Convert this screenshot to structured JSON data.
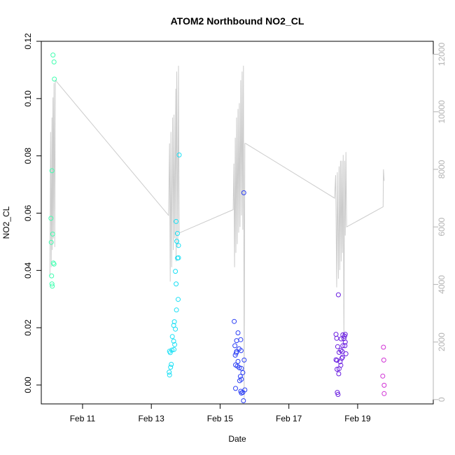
{
  "chart_data": {
    "type": "scatter",
    "title": "ATOM2 Northbound NO2_CL",
    "xlabel": "Date",
    "ylabel": "NO2_CL",
    "x_unit": "days",
    "xlim": [
      9.8,
      21.2
    ],
    "ylim": [
      -0.0066,
      0.12
    ],
    "y2lim": [
      -150,
      12450
    ],
    "grid": false,
    "legend": "none",
    "x_ticks": [
      {
        "value": 11,
        "label": "Feb 11"
      },
      {
        "value": 13,
        "label": "Feb 13"
      },
      {
        "value": 15,
        "label": "Feb 15"
      },
      {
        "value": 17,
        "label": "Feb 17"
      },
      {
        "value": 19,
        "label": "Feb 19"
      }
    ],
    "y_ticks": [
      "0.00",
      "0.02",
      "0.04",
      "0.06",
      "0.08",
      "0.10",
      "0.12"
    ],
    "y2_ticks": [
      "0",
      "2000",
      "4000",
      "6000",
      "8000",
      "10000",
      "12000"
    ],
    "series": [
      {
        "color": "#40ffb0",
        "points": [
          [
            10.14,
            0.1152
          ],
          [
            10.17,
            0.1128
          ],
          [
            10.18,
            0.1068
          ],
          [
            10.11,
            0.0748
          ],
          [
            10.08,
            0.0582
          ],
          [
            10.09,
            0.0498
          ],
          [
            10.13,
            0.0527
          ],
          [
            10.15,
            0.0426
          ],
          [
            10.17,
            0.0422
          ],
          [
            10.1,
            0.0381
          ],
          [
            10.11,
            0.0353
          ],
          [
            10.12,
            0.0345
          ]
        ]
      },
      {
        "color": "#19e0f5",
        "points": [
          [
            13.81,
            0.0803
          ],
          [
            13.72,
            0.0571
          ],
          [
            13.76,
            0.0529
          ],
          [
            13.74,
            0.0502
          ],
          [
            13.79,
            0.0487
          ],
          [
            13.76,
            0.0443
          ],
          [
            13.79,
            0.0444
          ],
          [
            13.7,
            0.0397
          ],
          [
            13.72,
            0.0353
          ],
          [
            13.78,
            0.0299
          ],
          [
            13.73,
            0.0262
          ],
          [
            13.67,
            0.0221
          ],
          [
            13.65,
            0.0208
          ],
          [
            13.7,
            0.0195
          ],
          [
            13.61,
            0.0169
          ],
          [
            13.65,
            0.0153
          ],
          [
            13.68,
            0.0141
          ],
          [
            13.6,
            0.0122
          ],
          [
            13.66,
            0.0124
          ],
          [
            13.53,
            0.0118
          ],
          [
            13.55,
            0.0113
          ],
          [
            13.58,
            0.0072
          ],
          [
            13.56,
            0.0062
          ],
          [
            13.52,
            0.0045
          ],
          [
            13.53,
            0.0035
          ]
        ]
      },
      {
        "color": "#2a3ef5",
        "points": [
          [
            15.69,
            0.0671
          ],
          [
            15.41,
            0.0222
          ],
          [
            15.52,
            0.0182
          ],
          [
            15.6,
            0.0158
          ],
          [
            15.48,
            0.0155
          ],
          [
            15.43,
            0.0137
          ],
          [
            15.55,
            0.0126
          ],
          [
            15.61,
            0.012
          ],
          [
            15.48,
            0.0117
          ],
          [
            15.44,
            0.0104
          ],
          [
            15.47,
            0.0112
          ],
          [
            15.7,
            0.0087
          ],
          [
            15.52,
            0.0082
          ],
          [
            15.45,
            0.007
          ],
          [
            15.5,
            0.0066
          ],
          [
            15.56,
            0.006
          ],
          [
            15.62,
            0.0058
          ],
          [
            15.66,
            0.0043
          ],
          [
            15.59,
            0.003
          ],
          [
            15.62,
            0.002
          ],
          [
            15.57,
            0.0015
          ],
          [
            15.45,
            -0.0012
          ],
          [
            15.72,
            -0.0017
          ],
          [
            15.6,
            -0.0022
          ],
          [
            15.66,
            -0.0026
          ],
          [
            15.62,
            -0.0028
          ],
          [
            15.68,
            -0.0055
          ]
        ]
      },
      {
        "color": "#6a1ee0",
        "points": [
          [
            18.44,
            0.0315
          ],
          [
            18.37,
            0.0177
          ],
          [
            18.57,
            0.0175
          ],
          [
            18.64,
            0.0177
          ],
          [
            18.62,
            0.017
          ],
          [
            18.52,
            0.0161
          ],
          [
            18.6,
            0.0162
          ],
          [
            18.39,
            0.0163
          ],
          [
            18.64,
            0.015
          ],
          [
            18.57,
            0.0137
          ],
          [
            18.63,
            0.0137
          ],
          [
            18.42,
            0.0134
          ],
          [
            18.51,
            0.0121
          ],
          [
            18.55,
            0.0117
          ],
          [
            18.46,
            0.0114
          ],
          [
            18.66,
            0.0109
          ],
          [
            18.56,
            0.0097
          ],
          [
            18.54,
            0.0093
          ],
          [
            18.4,
            0.0086
          ],
          [
            18.37,
            0.0088
          ],
          [
            18.49,
            0.0081
          ],
          [
            18.51,
            0.0069
          ],
          [
            18.46,
            0.0057
          ],
          [
            18.4,
            0.0055
          ],
          [
            18.45,
            0.0039
          ],
          [
            18.41,
            -0.0026
          ],
          [
            18.43,
            -0.0033
          ]
        ]
      },
      {
        "color": "#d030d5",
        "points": [
          [
            19.75,
            0.0132
          ],
          [
            19.76,
            0.0087
          ],
          [
            19.73,
            0.0031
          ],
          [
            19.77,
            -0.0001
          ],
          [
            19.77,
            -0.003
          ]
        ]
      }
    ],
    "secondary_series": {
      "color": "#cccccc",
      "axis": "right",
      "x": [
        10.05,
        10.07,
        10.09,
        10.11,
        10.12,
        10.14,
        10.15,
        10.17,
        10.19,
        10.21,
        13.5,
        13.53,
        13.55,
        13.57,
        13.59,
        13.62,
        13.64,
        13.66,
        13.68,
        13.71,
        13.72,
        13.74,
        13.77,
        13.79,
        13.81,
        13.83,
        15.38,
        15.4,
        15.42,
        15.44,
        15.46,
        15.48,
        15.5,
        15.52,
        15.54,
        15.56,
        15.58,
        15.6,
        15.62,
        15.64,
        15.66,
        15.68,
        15.7,
        15.72,
        15.74,
        18.33,
        18.36,
        18.39,
        18.41,
        18.44,
        18.46,
        18.48,
        18.5,
        18.52,
        18.54,
        18.56,
        18.58,
        18.6,
        18.62,
        18.64,
        18.66,
        18.68,
        19.74,
        19.75,
        19.77
      ],
      "values": [
        4300,
        9300,
        4600,
        9800,
        5200,
        10500,
        5600,
        11000,
        5300,
        11100,
        6400,
        8900,
        4100,
        9300,
        4600,
        9800,
        5200,
        9900,
        5600,
        10800,
        4800,
        11400,
        5300,
        11600,
        5800,
        5800,
        6600,
        8200,
        4600,
        9100,
        5100,
        9800,
        5400,
        10100,
        5800,
        10300,
        6000,
        11100,
        6400,
        11400,
        5900,
        11600,
        0,
        8900,
        8900,
        7000,
        7800,
        3900,
        7900,
        4200,
        8100,
        4500,
        8300,
        4800,
        8300,
        5100,
        8500,
        2000,
        8300,
        5700,
        8600,
        6000,
        6700,
        8000,
        7600
      ]
    }
  }
}
